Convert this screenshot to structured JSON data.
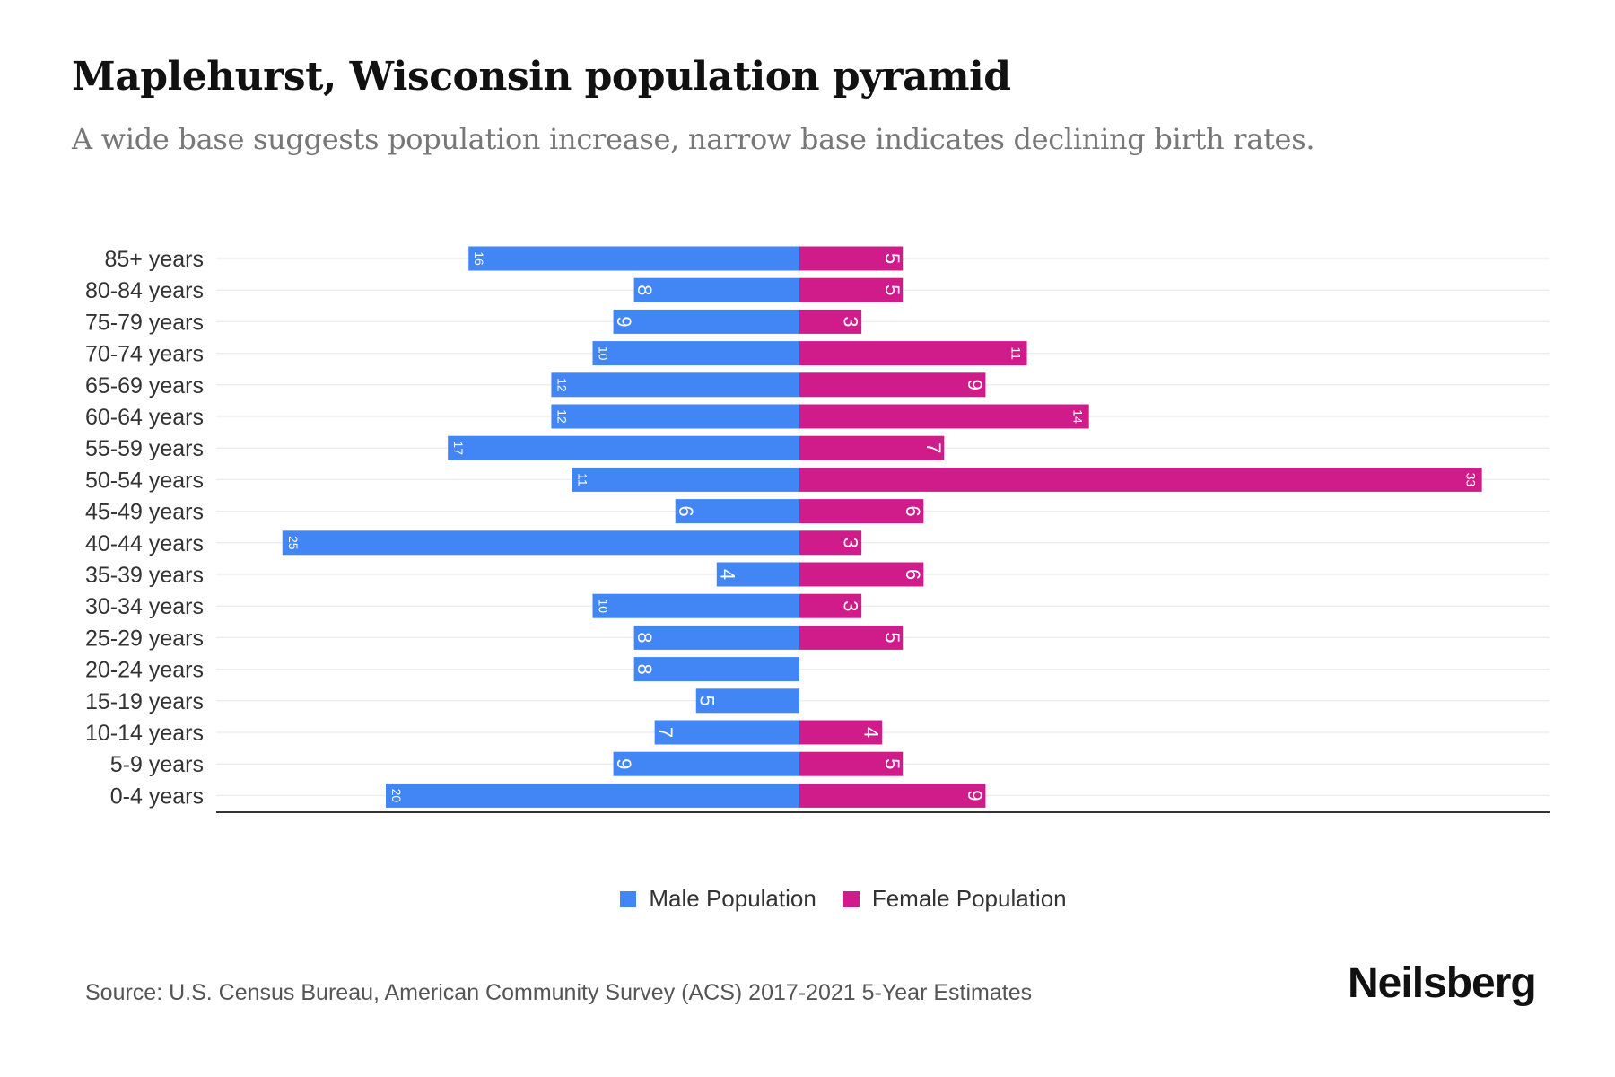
{
  "title": "Maplehurst, Wisconsin population pyramid",
  "subtitle": "A wide base suggests population increase, narrow base indicates declining birth rates.",
  "source": "Source: U.S. Census Bureau, American Community Survey (ACS) 2017-2021 5-Year Estimates",
  "logo": "Neilsberg",
  "colors": {
    "male": "#4285f4",
    "female": "#d01c8b"
  },
  "chart_data": {
    "type": "bar",
    "orientation": "horizontal-pyramid",
    "categories": [
      "85+ years",
      "80-84 years",
      "75-79 years",
      "70-74 years",
      "65-69 years",
      "60-64 years",
      "55-59 years",
      "50-54 years",
      "45-49 years",
      "40-44 years",
      "35-39 years",
      "30-34 years",
      "25-29 years",
      "20-24 years",
      "15-19 years",
      "10-14 years",
      "5-9 years",
      "0-4 years"
    ],
    "series": [
      {
        "name": "Male Population",
        "values": [
          16,
          8,
          9,
          10,
          12,
          12,
          17,
          11,
          6,
          25,
          4,
          10,
          8,
          8,
          5,
          7,
          9,
          20
        ]
      },
      {
        "name": "Female Population",
        "values": [
          5,
          5,
          3,
          11,
          9,
          14,
          7,
          33,
          6,
          3,
          6,
          3,
          5,
          0,
          0,
          4,
          5,
          9
        ]
      }
    ],
    "legend": "bottom-center",
    "grid": true
  }
}
